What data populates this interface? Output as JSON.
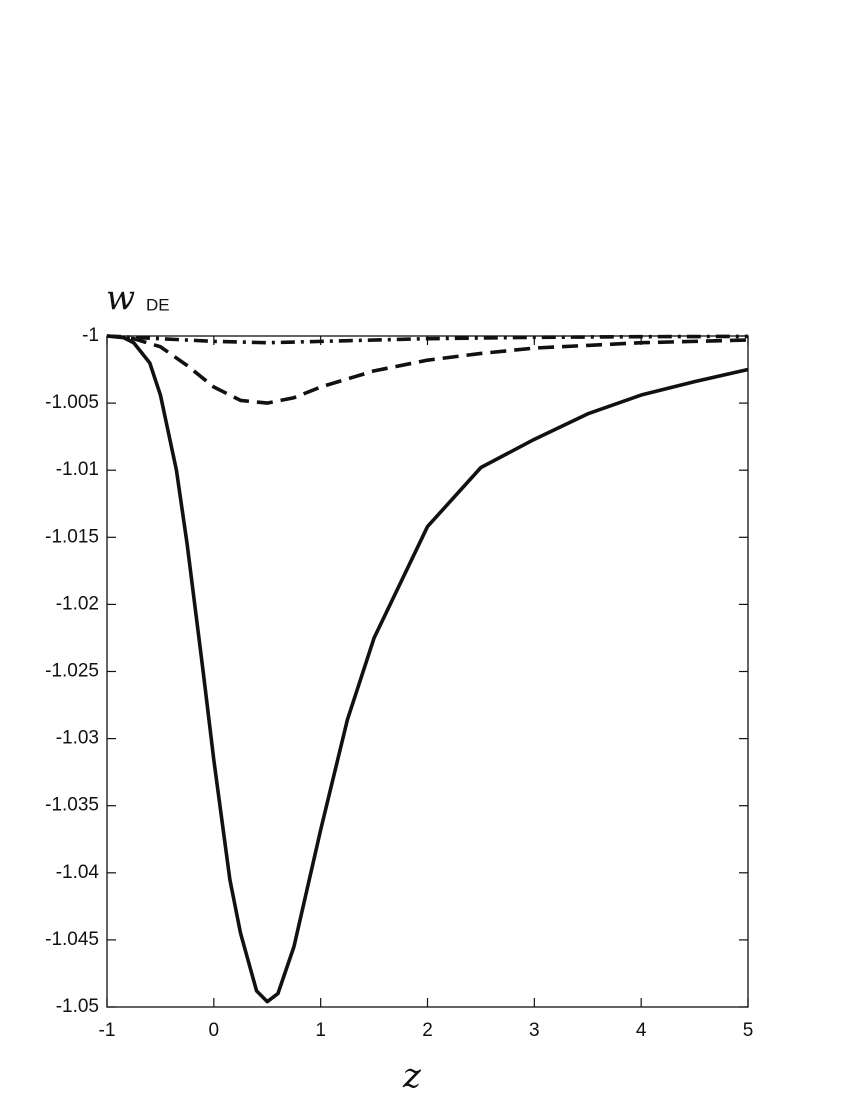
{
  "chart_data": {
    "type": "line",
    "xlabel": "z",
    "ylabel": {
      "main": "w",
      "subscript": "DE"
    },
    "xlim": [
      -1,
      5
    ],
    "xticks": [
      -1,
      0,
      1,
      2,
      3,
      4,
      5
    ],
    "ylim": [
      -1.05,
      -1
    ],
    "yticks": [
      -1,
      -1.005,
      -1.01,
      -1.015,
      -1.02,
      -1.025,
      -1.03,
      -1.035,
      -1.04,
      -1.045,
      -1.05
    ],
    "grid": false,
    "series": [
      {
        "color": "#111111",
        "line_style": "solid",
        "x": [
          -1,
          -0.85,
          -0.75,
          -0.6,
          -0.5,
          -0.35,
          -0.25,
          -0.1,
          0,
          0.15,
          0.25,
          0.4,
          0.5,
          0.6,
          0.75,
          1,
          1.25,
          1.5,
          2,
          2.5,
          3,
          3.5,
          4,
          4.5,
          5
        ],
        "values": [
          -1,
          -1.0001,
          -1.0005,
          -1.002,
          -1.0044,
          -1.01,
          -1.0155,
          -1.025,
          -1.0316,
          -1.0405,
          -1.0445,
          -1.0488,
          -1.0496,
          -1.049,
          -1.0455,
          -1.0368,
          -1.0286,
          -1.0225,
          -1.0142,
          -1.0098,
          -1.0077,
          -1.0058,
          -1.0044,
          -1.0034,
          -1.0025
        ]
      },
      {
        "color": "#111111",
        "line_style": "dashed",
        "x": [
          -1,
          -0.75,
          -0.5,
          -0.25,
          0,
          0.25,
          0.5,
          0.75,
          1,
          1.5,
          2,
          2.5,
          3,
          3.5,
          4,
          4.5,
          5
        ],
        "values": [
          -1,
          -1.0002,
          -1.0008,
          -1.0022,
          -1.0038,
          -1.0048,
          -1.005,
          -1.0046,
          -1.0038,
          -1.0026,
          -1.0018,
          -1.0013,
          -1.0009,
          -1.0007,
          -1.0005,
          -1.0004,
          -1.0003
        ]
      },
      {
        "color": "#111111",
        "line_style": "dashdot",
        "x": [
          -1,
          -0.5,
          0,
          0.5,
          1,
          2,
          3,
          4,
          5
        ],
        "values": [
          -1,
          -1.0002,
          -1.0004,
          -1.0005,
          -1.0004,
          -1.0002,
          -1.0001,
          -1.00005,
          -1.00003
        ]
      }
    ]
  }
}
